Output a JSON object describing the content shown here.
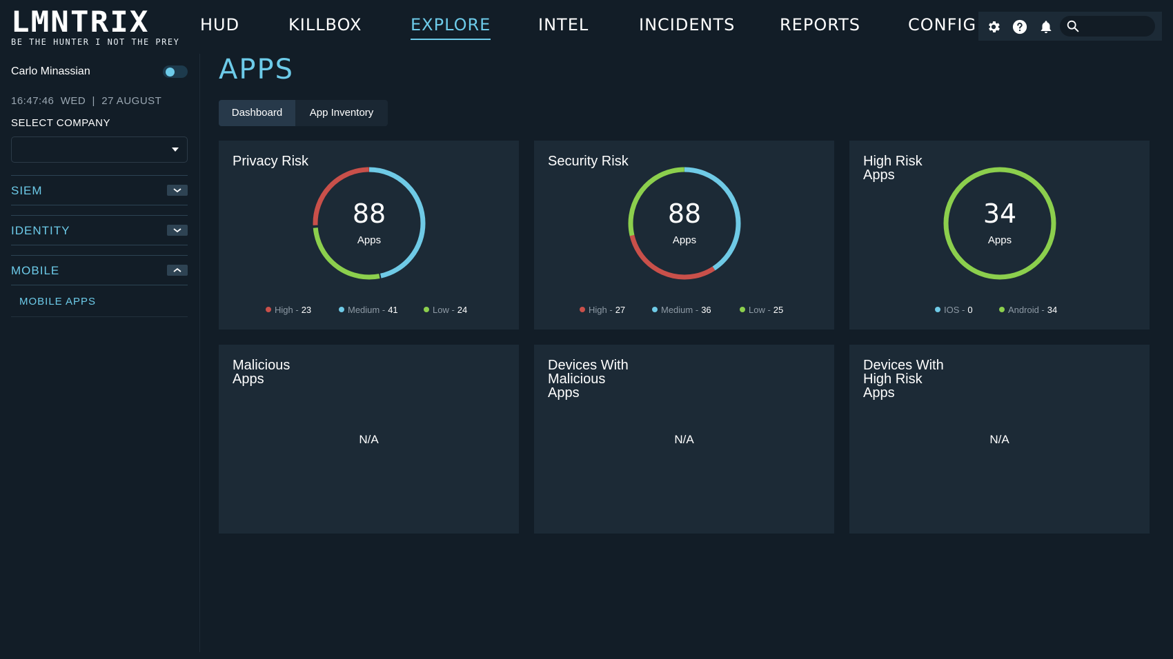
{
  "brand": {
    "name": "LMNTRIX",
    "tagline": "BE THE HUNTER I NOT THE PREY"
  },
  "nav": {
    "items": [
      "HUD",
      "KILLBOX",
      "EXPLORE",
      "INTEL",
      "INCIDENTS",
      "REPORTS",
      "CONFIG"
    ],
    "active": "EXPLORE"
  },
  "toolbar": {
    "search_value": ""
  },
  "sidebar": {
    "user_name": "Carlo Minassian",
    "clock": "16:47:46  WED  |  27 AUGUST",
    "select_company_label": "SELECT COMPANY",
    "company_value": "",
    "sections": [
      "SIEM",
      "IDENTITY",
      "MOBILE"
    ],
    "mobile_sub_item": "MOBILE APPS"
  },
  "page": {
    "title": "APPS",
    "tabs": [
      "Dashboard",
      "App Inventory"
    ],
    "active_tab": "Dashboard"
  },
  "colors": {
    "high": "#c9504a",
    "medium": "#6fcae6",
    "low": "#8ccf4d",
    "accent": "#6dcbe9"
  },
  "cards": {
    "privacy": {
      "title": "Privacy Risk",
      "total": "88",
      "unit": "Apps",
      "legend": [
        {
          "label": "High -",
          "value": "23"
        },
        {
          "label": "Medium -",
          "value": "41"
        },
        {
          "label": "Low -",
          "value": "24"
        }
      ]
    },
    "security": {
      "title": "Security Risk",
      "total": "88",
      "unit": "Apps",
      "legend": [
        {
          "label": "High -",
          "value": "27"
        },
        {
          "label": "Medium -",
          "value": "36"
        },
        {
          "label": "Low -",
          "value": "25"
        }
      ]
    },
    "highrisk": {
      "title": "High Risk Apps",
      "total": "34",
      "unit": "Apps",
      "legend": [
        {
          "label": "IOS -",
          "value": "0"
        },
        {
          "label": "Android -",
          "value": "34"
        }
      ]
    },
    "malicious": {
      "title": "Malicious Apps",
      "value": "N/A"
    },
    "devices_malicious": {
      "title": "Devices With Malicious Apps",
      "value": "N/A"
    },
    "devices_highrisk": {
      "title": "Devices With High Risk Apps",
      "value": "N/A"
    }
  }
}
